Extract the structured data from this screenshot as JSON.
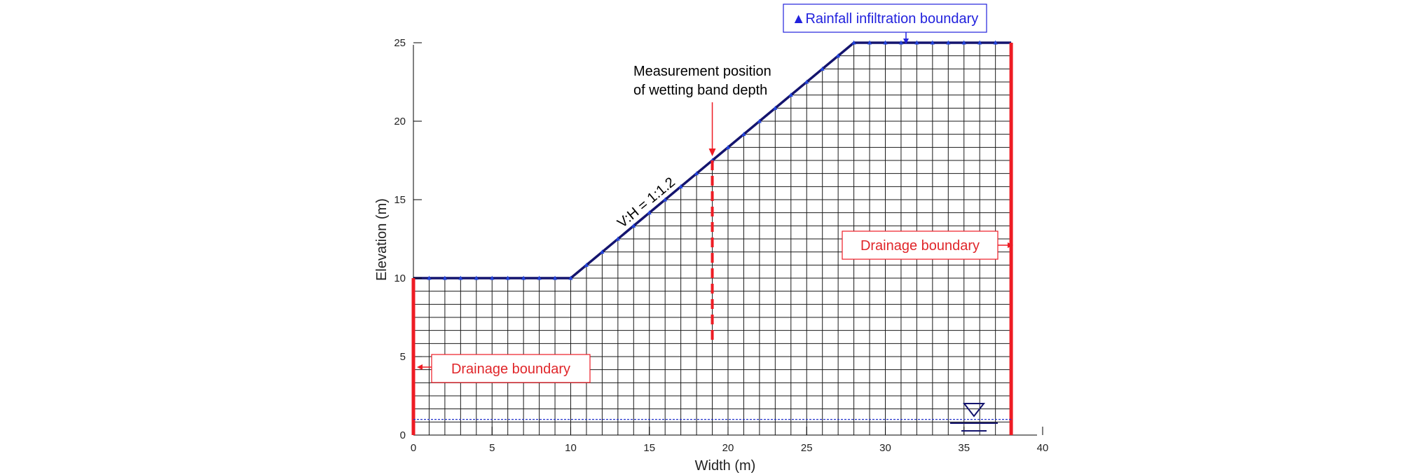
{
  "figure": {
    "x_axis": {
      "label": "Width (m)",
      "range": [
        0,
        40
      ],
      "ticks": [
        "0",
        "5",
        "10",
        "15",
        "20",
        "25",
        "30",
        "35",
        "40"
      ]
    },
    "y_axis": {
      "label": "Elevation (m)",
      "range": [
        0,
        25
      ],
      "ticks": [
        "0",
        "5",
        "10",
        "15",
        "20",
        "25"
      ]
    },
    "slope_profile": [
      [
        0,
        10
      ],
      [
        10,
        10
      ],
      [
        28,
        25
      ],
      [
        38,
        25
      ]
    ],
    "mesh_domain": {
      "x_range": [
        0,
        38
      ],
      "y_range": [
        0,
        25
      ]
    },
    "water_table_elevation": 1,
    "measurement_x": 19,
    "slope_label": "V:H = 1:1.2",
    "measurement_label_line1": "Measurement position",
    "measurement_label_line2": "of wetting band depth",
    "drainage_left_label": "Drainage boundary",
    "drainage_right_label": "Drainage boundary",
    "rainfall_label": "▲Rainfall infiltration boundary",
    "colors": {
      "mesh": "#1a1a1a",
      "surface": "#14146e",
      "boundary": "#ee1c24",
      "water": "#2233cc",
      "marker": "#2244dd",
      "label_blue": "#2222dd"
    }
  }
}
